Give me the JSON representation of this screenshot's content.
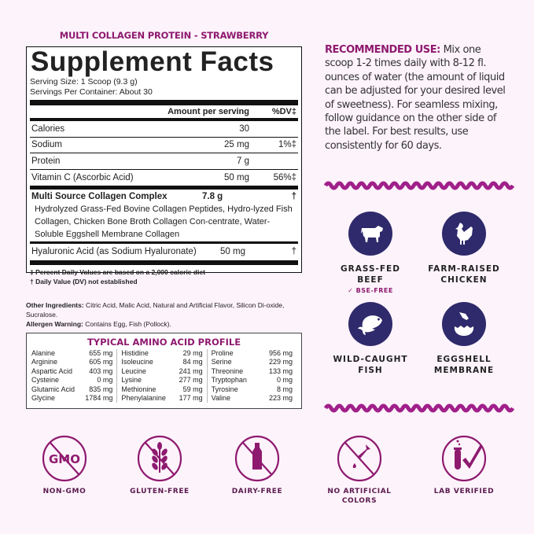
{
  "product_name": "MULTI COLLAGEN PROTEIN -  STRAWBERRY",
  "facts": {
    "title": "Supplement Facts",
    "serving_size": "Serving Size: 1 Scoop (9.3 g)",
    "servings_per_container": "Servings Per Container: About 30",
    "header_amount": "Amount per serving",
    "header_dv": "%DV‡",
    "rows": [
      {
        "name": "Calories",
        "amount": "30",
        "dv": ""
      },
      {
        "name": "Sodium",
        "amount": "25 mg",
        "dv": "1%‡"
      },
      {
        "name": "Protein",
        "amount": "7 g",
        "dv": ""
      },
      {
        "name": "Vitamin C (Ascorbic Acid)",
        "amount": "50 mg",
        "dv": "56%‡"
      }
    ],
    "complex": {
      "name": "Multi Source Collagen Complex",
      "amount": "7.8 g",
      "dv": "†",
      "detail": "Hydrolyzed Grass-Fed Bovine Collagen Peptides, Hydro-lyzed Fish Collagen, Chicken Bone Broth Collagen Con-centrate, Water-Soluble Eggshell Membrane Collagen"
    },
    "hyaluronic": {
      "name": "Hyaluronic Acid (as Sodium Hyaluronate)",
      "amount": "50 mg",
      "dv": "†"
    },
    "footnote1": "‡ Percent Daily Values are based on a 2,000 calorie diet",
    "footnote2": "† Daily Value (DV) not established"
  },
  "other": {
    "label": "Other Ingredients:",
    "text": " Citric Acid, Malic Acid, Natural and Artificial Flavor, Silicon Di-oxide, Sucralose."
  },
  "allergen": {
    "label": "Allergen Warning:",
    "text": " Contains Egg, Fish (Pollock)."
  },
  "amino": {
    "title": "TYPICAL AMINO ACID PROFILE",
    "columns": [
      [
        [
          "Alanine",
          "655 mg"
        ],
        [
          "Arginine",
          "605 mg"
        ],
        [
          "Aspartic Acid",
          "403 mg"
        ],
        [
          "Cysteine",
          "0 mg"
        ],
        [
          "Glutamic Acid",
          "835 mg"
        ],
        [
          "Glycine",
          "1784 mg"
        ]
      ],
      [
        [
          "Histidine",
          "29 mg"
        ],
        [
          "Isoleucine",
          "84 mg"
        ],
        [
          "Leucine",
          "241 mg"
        ],
        [
          "Lysine",
          "277 mg"
        ],
        [
          "Methionine",
          "59 mg"
        ],
        [
          "Phenylalanine",
          "177 mg"
        ]
      ],
      [
        [
          "Proline",
          "956 mg"
        ],
        [
          "Serine",
          "229 mg"
        ],
        [
          "Threonine",
          "133 mg"
        ],
        [
          "Tryptophan",
          "0 mg"
        ],
        [
          "Tyrosine",
          "8 mg"
        ],
        [
          "Valine",
          "223 mg"
        ]
      ]
    ]
  },
  "recommended": {
    "label": "RECOMMENDED USE:",
    "text": " Mix one scoop 1-2 times daily with 8-12 fl. ounces of water (the amount of liquid can be adjusted for your desired level of sweetness). For seamless mixing, follow guidance on the other side of the label. For best results, use consistently for 60 days."
  },
  "sources": [
    {
      "icon": "cow-icon",
      "line1": "GRASS-FED",
      "line2": "BEEF",
      "note": "✓ BSE-FREE"
    },
    {
      "icon": "chicken-icon",
      "line1": "FARM-RAISED",
      "line2": "CHICKEN"
    },
    {
      "icon": "fish-icon",
      "line1": "WILD-CAUGHT",
      "line2": "FISH"
    },
    {
      "icon": "egg-icon",
      "line1": "EGGSHELL",
      "line2": "MEMBRANE"
    }
  ],
  "badges": [
    {
      "icon": "non-gmo-icon",
      "label": "NON-GMO",
      "glyph": "GMO"
    },
    {
      "icon": "gluten-free-icon",
      "label": "GLUTEN-FREE"
    },
    {
      "icon": "dairy-free-icon",
      "label": "DAIRY-FREE"
    },
    {
      "icon": "no-artificial-colors-icon",
      "label": "NO ARTIFICIAL COLORS"
    },
    {
      "icon": "lab-verified-icon",
      "label": "LAB VERIFIED"
    }
  ],
  "colors": {
    "accent": "#8e1a6f",
    "navy": "#2e2a6b",
    "background": "#fdf3fb"
  }
}
